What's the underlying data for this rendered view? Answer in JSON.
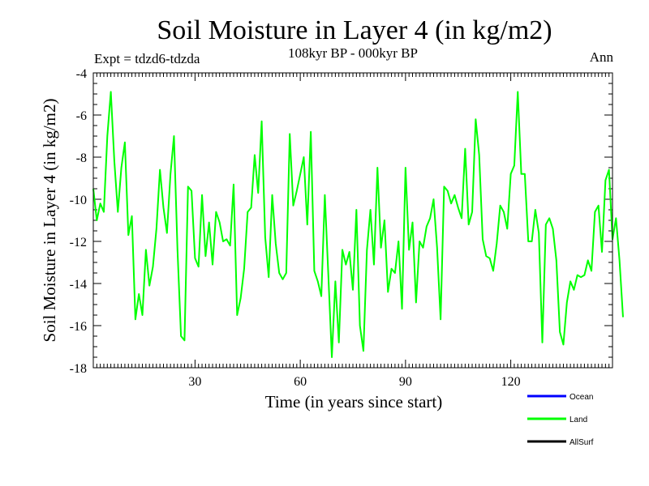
{
  "chart_data": {
    "type": "line",
    "title": "Soil Moisture in Layer 4 (in kg/m2)",
    "subtitle": "108kyr BP - 000kyr BP",
    "experiment_label": "Expt = tdzd6-tdzda",
    "season_label": "Ann",
    "xlabel": "Time (in years since start)",
    "ylabel": "Soil Moisture in Layer 4 (in kg/m2)",
    "xlim": [
      1,
      149
    ],
    "ylim": [
      -18,
      -4
    ],
    "x_ticks": [
      30,
      60,
      90,
      120
    ],
    "x_tick_labels": [
      "30",
      "60",
      "90",
      "120"
    ],
    "y_ticks": [
      -18,
      -16,
      -14,
      -12,
      -10,
      -8,
      -6,
      -4
    ],
    "y_tick_labels": [
      "-18",
      "-16",
      "-14",
      "-12",
      "-10",
      "-8",
      "-6",
      "-4"
    ],
    "legend": [
      {
        "name": "Ocean",
        "color": "#0000ff"
      },
      {
        "name": "Land",
        "color": "#00ff00"
      },
      {
        "name": "AllSurf",
        "color": "#000000"
      }
    ],
    "series": [
      {
        "name": "Land",
        "color": "#00ff00",
        "x_start": 1,
        "values": [
          -9.5,
          -11.0,
          -10.2,
          -10.6,
          -7.0,
          -4.9,
          -8.2,
          -10.6,
          -8.5,
          -7.3,
          -11.7,
          -10.8,
          -15.7,
          -14.5,
          -15.5,
          -12.4,
          -14.1,
          -13.2,
          -11.4,
          -8.6,
          -10.4,
          -11.6,
          -8.8,
          -7.0,
          -12.4,
          -16.5,
          -16.7,
          -9.4,
          -9.6,
          -12.8,
          -13.2,
          -9.8,
          -12.7,
          -11.1,
          -13.1,
          -10.6,
          -11.1,
          -12.0,
          -11.9,
          -12.2,
          -9.3,
          -15.5,
          -14.7,
          -13.3,
          -10.6,
          -10.4,
          -7.9,
          -9.7,
          -6.3,
          -11.8,
          -13.7,
          -9.8,
          -12.1,
          -13.5,
          -13.8,
          -13.5,
          -6.9,
          -10.3,
          -9.6,
          -8.8,
          -8.0,
          -11.2,
          -6.8,
          -13.4,
          -13.9,
          -14.6,
          -9.8,
          -13.6,
          -17.5,
          -13.9,
          -16.8,
          -12.4,
          -13.1,
          -12.5,
          -14.3,
          -10.5,
          -16.0,
          -17.2,
          -12.4,
          -10.5,
          -13.1,
          -8.5,
          -12.3,
          -11.0,
          -14.4,
          -13.3,
          -13.5,
          -12.0,
          -15.2,
          -8.5,
          -12.4,
          -11.1,
          -14.9,
          -12.0,
          -12.3,
          -11.3,
          -10.9,
          -10.0,
          -12.3,
          -15.7,
          -9.4,
          -9.6,
          -10.2,
          -9.8,
          -10.4,
          -10.9,
          -7.6,
          -11.2,
          -10.6,
          -6.2,
          -7.9,
          -11.9,
          -12.7,
          -12.8,
          -13.4,
          -12.1,
          -10.3,
          -10.6,
          -11.4,
          -8.8,
          -8.4,
          -4.9,
          -8.8,
          -8.8,
          -12.0,
          -12.0,
          -10.5,
          -11.6,
          -16.8,
          -11.2,
          -10.9,
          -11.4,
          -12.9,
          -16.3,
          -16.9,
          -14.9,
          -13.9,
          -14.3,
          -13.6,
          -13.7,
          -13.6,
          -12.9,
          -13.4,
          -10.6,
          -10.3,
          -12.5,
          -9.1,
          -8.6,
          -11.9,
          -10.9,
          -12.9,
          -15.6
        ]
      }
    ]
  }
}
